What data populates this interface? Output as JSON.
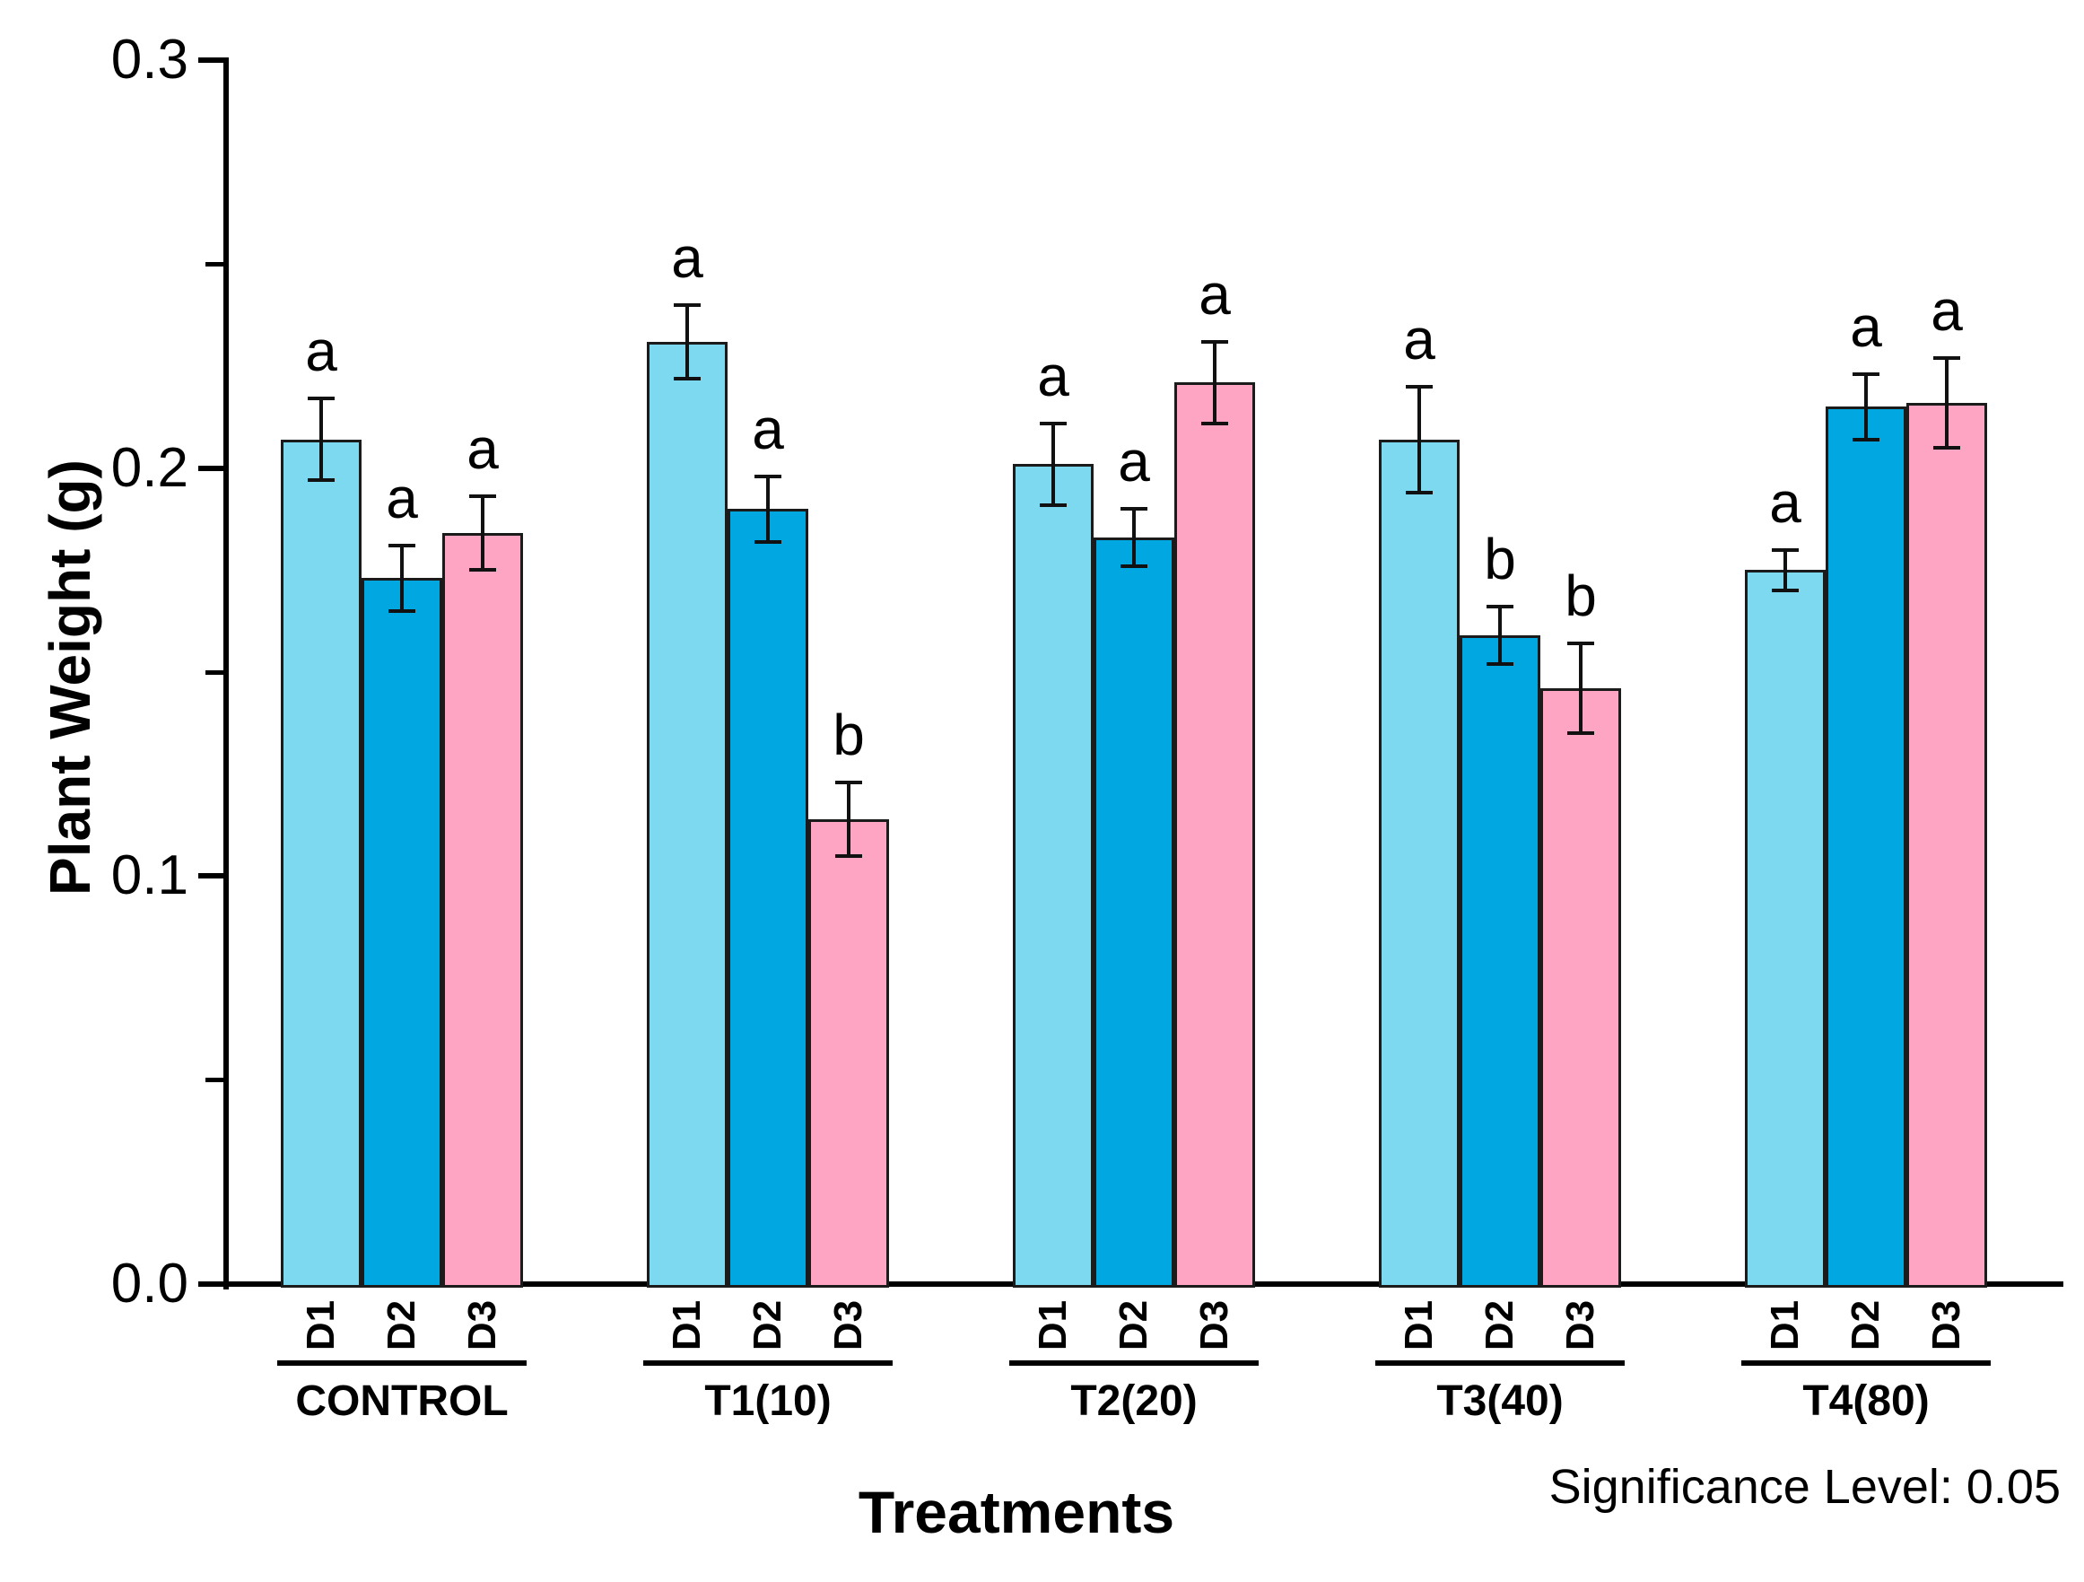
{
  "figure": {
    "background": "#ffffff"
  },
  "chart_data": {
    "type": "bar",
    "title": "",
    "xlabel": "Treatments",
    "ylabel": "Plant Weight (g)",
    "annotation": "Significance Level: 0.05",
    "ylim": [
      0,
      0.3
    ],
    "ytick_labels": [
      "0.0",
      "0.1",
      "0.2",
      "0.3"
    ],
    "yticks_major": [
      0,
      0.1,
      0.2,
      0.3
    ],
    "yticks_minor": [
      0.05,
      0.15,
      0.25
    ],
    "grid": "off",
    "legend_position": "none (series labeled under each bar as D1/D2/D3)",
    "categories": [
      "CONTROL",
      "T1(10)",
      "T2(20)",
      "T3(40)",
      "T4(80)"
    ],
    "series": [
      {
        "name": "D1",
        "color": "#7CD9F0",
        "values": [
          0.207,
          0.231,
          0.201,
          0.207,
          0.175
        ],
        "errors": [
          0.01,
          0.009,
          0.01,
          0.013,
          0.005
        ],
        "sig_letters": [
          "a",
          "a",
          "a",
          "a",
          "a"
        ]
      },
      {
        "name": "D2",
        "color": "#00A7E1",
        "values": [
          0.173,
          0.19,
          0.183,
          0.159,
          0.215
        ],
        "errors": [
          0.008,
          0.008,
          0.007,
          0.007,
          0.008
        ],
        "sig_letters": [
          "a",
          "a",
          "a",
          "b",
          "a"
        ]
      },
      {
        "name": "D3",
        "color": "#FFA5C4",
        "values": [
          0.184,
          0.114,
          0.221,
          0.146,
          0.216
        ],
        "errors": [
          0.009,
          0.009,
          0.01,
          0.011,
          0.011
        ],
        "sig_letters": [
          "a",
          "b",
          "a",
          "b",
          "a"
        ]
      }
    ],
    "colors": {
      "bar_outline": "#1b1b1b",
      "axis": "#000000",
      "text": "#000000",
      "error_bar": "#111111"
    }
  }
}
